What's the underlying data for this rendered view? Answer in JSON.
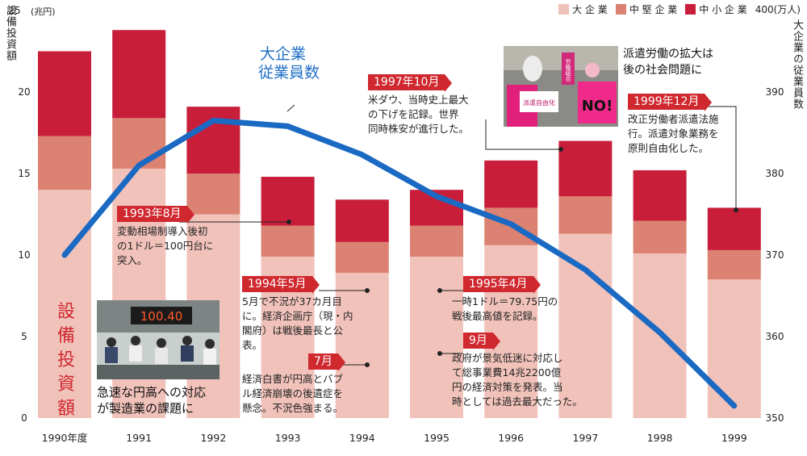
{
  "legend": {
    "large_label": "大 企 業",
    "mid_label": "中 堅 企 業",
    "small_label": "中 小 企 業",
    "employee_unit": "400(万人)"
  },
  "axes": {
    "left_title": "設備投資額",
    "left_unit": "(兆円)",
    "right_title": "大企業の従業員数"
  },
  "colors": {
    "large": "#f1c2ba",
    "mid": "#dc8272",
    "small": "#c81e3a",
    "line": "#1a69c3",
    "tag": "#d0282f"
  },
  "chart_data": {
    "type": "bar",
    "stacked": true,
    "categories": [
      "1990年度",
      "1991",
      "1992",
      "1993",
      "1994",
      "1995",
      "1996",
      "1997",
      "1998",
      "1999"
    ],
    "series": [
      {
        "name": "大 企 業",
        "values": [
          14.0,
          15.3,
          12.5,
          9.9,
          8.9,
          9.9,
          10.6,
          11.3,
          10.1,
          8.5
        ]
      },
      {
        "name": "中 堅 企 業",
        "values": [
          3.3,
          3.1,
          2.5,
          1.9,
          1.9,
          1.9,
          2.3,
          2.3,
          2.0,
          1.8
        ]
      },
      {
        "name": "中 小 企 業",
        "values": [
          5.2,
          5.4,
          4.1,
          3.0,
          2.6,
          2.2,
          2.9,
          3.4,
          3.1,
          2.6
        ]
      }
    ],
    "line_series": {
      "name": "大企業従業員数",
      "axis": "right",
      "values": [
        370.0,
        381.0,
        386.5,
        385.8,
        382.3,
        377.2,
        373.8,
        368.2,
        360.5,
        351.5
      ]
    },
    "ylim": [
      0,
      25
    ],
    "y_ticks": [
      0,
      5,
      10,
      15,
      20,
      25
    ],
    "y2lim": [
      350,
      400
    ],
    "y2_ticks": [
      350,
      360,
      370,
      380,
      390,
      400
    ],
    "xlabel": "",
    "ylabel": "設備投資額",
    "y2label": "大企業の従業員数",
    "legend": "top-right",
    "grid": false
  },
  "annotations": {
    "line_label_1": "大企業",
    "line_label_2": "従業員数",
    "bar_label": [
      "設",
      "備",
      "投",
      "資",
      "額"
    ],
    "caption_left_1": "急速な円高への対応",
    "caption_left_2": "が製造業の課題に",
    "caption_right_1": "派遣労働の拡大は",
    "caption_right_2": "後の社会問題に",
    "photo_display": "100.40",
    "sign_no": "NO!",
    "sign_1": "派遣自由化",
    "sign_2": "労働組合",
    "events": {
      "e1993": {
        "tag": "1993年8月",
        "l1": "変動相場制導入後初",
        "l2": "の1ドル＝100円台に",
        "l3": "突入。"
      },
      "e1994": {
        "tag": "1994年5月",
        "l1": "5月で不況が37カ月目",
        "l2": "に。経済企画庁（現・内",
        "l3": "閣府）は戦後最長と公",
        "l4": "表。"
      },
      "e1994b": {
        "tag": "7月",
        "l1": "経済白書が円高とバブ",
        "l2": "ル経済崩壊の後遺症を",
        "l3": "懸念。不況色強まる。"
      },
      "e1995": {
        "tag": "1995年4月",
        "l1": "一時1ドル＝79.75円の",
        "l2": "戦後最高値を記録。"
      },
      "e1995b": {
        "tag": "9月",
        "l1": "政府が景気低迷に対応し",
        "l2": "て総事業費14兆2200億",
        "l3": "円の経済対策を発表。当",
        "l4": "時としては過去最大だった。"
      },
      "e1997": {
        "tag": "1997年10月",
        "l1": "米ダウ、当時史上最大",
        "l2": "の下げを記録。世界",
        "l3": "同時株安が進行した。"
      },
      "e1999": {
        "tag": "1999年12月",
        "l1": "改正労働者派遣法施",
        "l2": "行。派遣対象業務を",
        "l3": "原則自由化した。"
      }
    }
  }
}
